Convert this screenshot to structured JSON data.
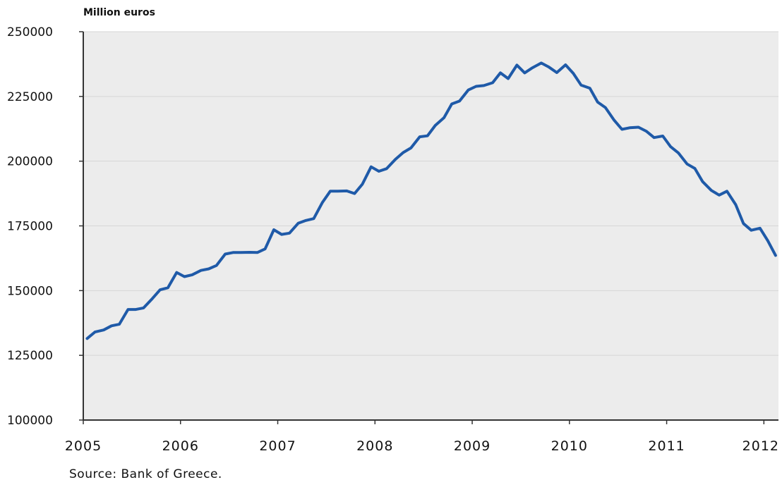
{
  "chart_data": {
    "type": "line",
    "ylabel": "Million euros",
    "ylim": [
      100000,
      250000
    ],
    "yticks": [
      "250000",
      "225000",
      "200000",
      "175000",
      "150000",
      "125000",
      "100000"
    ],
    "xlim": [
      2005,
      2012.15
    ],
    "xticks": [
      "2005",
      "2006",
      "2007",
      "2008",
      "2009",
      "2010",
      "2011",
      "2012"
    ],
    "grid": "horizontal",
    "series": [
      {
        "color": "#1f5aa8",
        "points": [
          [
            2005.04,
            131500
          ],
          [
            2005.12,
            134000
          ],
          [
            2005.21,
            134800
          ],
          [
            2005.29,
            136400
          ],
          [
            2005.37,
            137000
          ],
          [
            2005.46,
            142700
          ],
          [
            2005.54,
            142700
          ],
          [
            2005.62,
            143300
          ],
          [
            2005.71,
            146900
          ],
          [
            2005.79,
            150300
          ],
          [
            2005.87,
            151100
          ],
          [
            2005.96,
            157000
          ],
          [
            2006.04,
            155400
          ],
          [
            2006.12,
            156100
          ],
          [
            2006.21,
            157800
          ],
          [
            2006.29,
            158400
          ],
          [
            2006.37,
            159700
          ],
          [
            2006.46,
            164100
          ],
          [
            2006.54,
            164700
          ],
          [
            2006.62,
            164700
          ],
          [
            2006.71,
            164800
          ],
          [
            2006.79,
            164700
          ],
          [
            2006.87,
            166100
          ],
          [
            2006.96,
            173500
          ],
          [
            2007.04,
            171700
          ],
          [
            2007.12,
            172200
          ],
          [
            2007.21,
            176000
          ],
          [
            2007.29,
            177100
          ],
          [
            2007.37,
            177800
          ],
          [
            2007.46,
            184100
          ],
          [
            2007.54,
            188400
          ],
          [
            2007.62,
            188400
          ],
          [
            2007.71,
            188500
          ],
          [
            2007.79,
            187500
          ],
          [
            2007.87,
            191100
          ],
          [
            2007.96,
            197800
          ],
          [
            2008.04,
            196100
          ],
          [
            2008.12,
            197100
          ],
          [
            2008.21,
            200700
          ],
          [
            2008.29,
            203300
          ],
          [
            2008.37,
            205100
          ],
          [
            2008.46,
            209400
          ],
          [
            2008.54,
            209800
          ],
          [
            2008.62,
            213800
          ],
          [
            2008.71,
            216800
          ],
          [
            2008.79,
            222100
          ],
          [
            2008.87,
            223200
          ],
          [
            2008.96,
            227500
          ],
          [
            2009.04,
            228900
          ],
          [
            2009.12,
            229200
          ],
          [
            2009.21,
            230300
          ],
          [
            2009.29,
            234100
          ],
          [
            2009.37,
            231900
          ],
          [
            2009.46,
            237100
          ],
          [
            2009.54,
            234100
          ],
          [
            2009.62,
            236100
          ],
          [
            2009.71,
            237900
          ],
          [
            2009.79,
            236300
          ],
          [
            2009.87,
            234200
          ],
          [
            2009.96,
            237200
          ],
          [
            2010.04,
            233900
          ],
          [
            2010.12,
            229400
          ],
          [
            2010.21,
            228200
          ],
          [
            2010.29,
            222800
          ],
          [
            2010.37,
            220700
          ],
          [
            2010.46,
            215800
          ],
          [
            2010.54,
            212300
          ],
          [
            2010.62,
            212900
          ],
          [
            2010.71,
            213100
          ],
          [
            2010.79,
            211600
          ],
          [
            2010.87,
            209100
          ],
          [
            2010.96,
            209700
          ],
          [
            2011.04,
            205600
          ],
          [
            2011.12,
            203200
          ],
          [
            2011.21,
            198900
          ],
          [
            2011.29,
            197200
          ],
          [
            2011.37,
            192100
          ],
          [
            2011.46,
            188700
          ],
          [
            2011.54,
            186900
          ],
          [
            2011.62,
            188400
          ],
          [
            2011.71,
            183200
          ],
          [
            2011.79,
            175900
          ],
          [
            2011.87,
            173300
          ],
          [
            2011.96,
            174100
          ],
          [
            2012.04,
            169300
          ],
          [
            2012.12,
            163600
          ]
        ]
      }
    ]
  },
  "source": "Source: Bank of Greece."
}
